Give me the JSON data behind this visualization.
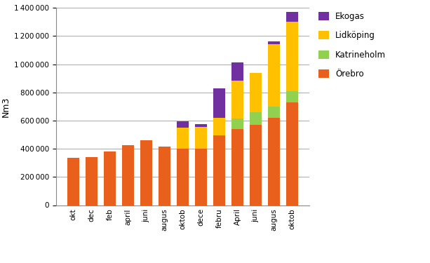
{
  "categories": [
    "okt",
    "dec",
    "feb",
    "april",
    "juni",
    "augus",
    "oktob",
    "dece",
    "febru",
    "April",
    "juni",
    "augus",
    "oktob"
  ],
  "orebro": [
    335000,
    340000,
    380000,
    425000,
    460000,
    415000,
    400000,
    400000,
    495000,
    540000,
    570000,
    620000,
    730000
  ],
  "katrineholm": [
    0,
    0,
    0,
    0,
    0,
    0,
    0,
    0,
    0,
    75000,
    90000,
    80000,
    80000
  ],
  "lidkoping": [
    0,
    0,
    0,
    0,
    0,
    0,
    150000,
    155000,
    125000,
    270000,
    280000,
    440000,
    490000
  ],
  "ekogas": [
    0,
    0,
    0,
    0,
    0,
    0,
    45000,
    20000,
    210000,
    130000,
    0,
    20000,
    70000
  ],
  "colors": {
    "orebro": "#E8601C",
    "katrineholm": "#92D050",
    "lidkoping": "#FFC000",
    "ekogas": "#7030A0"
  },
  "ylabel": "Nm3",
  "ylim": [
    0,
    1400000
  ],
  "yticks": [
    0,
    200000,
    400000,
    600000,
    800000,
    1000000,
    1200000,
    1400000
  ],
  "background_color": "#FFFFFF",
  "grid_color": "#AAAAAA",
  "figsize": [
    6.13,
    3.75
  ],
  "dpi": 100
}
